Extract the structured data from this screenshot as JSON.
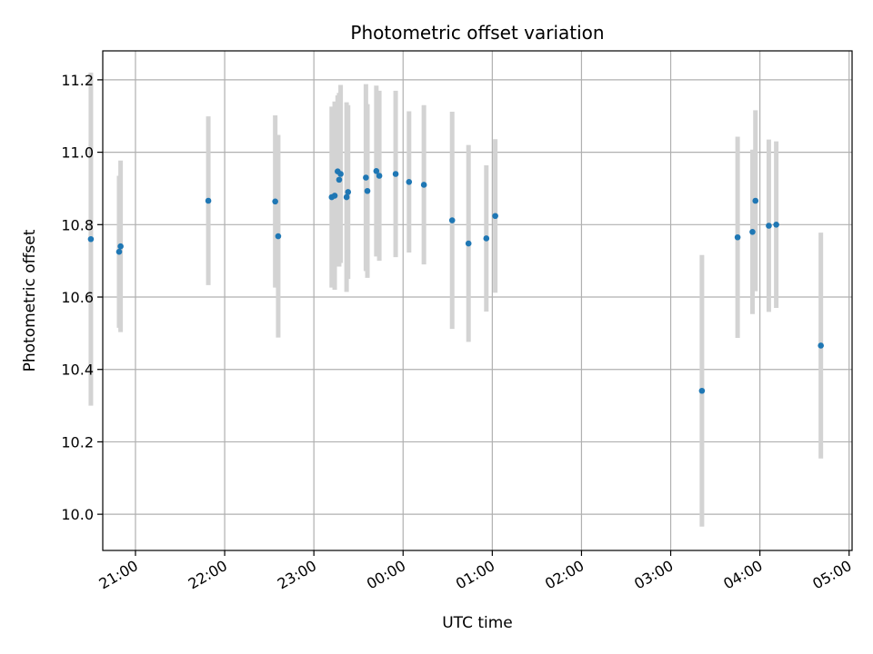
{
  "chart_data": {
    "type": "scatter",
    "title": "Photometric offset variation",
    "xlabel": "UTC time",
    "ylabel": "Photometric offset",
    "x_is_time": true,
    "xlim": [
      "20:38",
      "05:02"
    ],
    "ylim": [
      9.9,
      11.28
    ],
    "grid": true,
    "xticks": [
      "21:00",
      "22:00",
      "23:00",
      "00:00",
      "01:00",
      "02:00",
      "03:00",
      "04:00",
      "05:00"
    ],
    "yticks": [
      "10.0",
      "10.2",
      "10.4",
      "10.6",
      "10.8",
      "11.0",
      "11.2"
    ],
    "point_color": "#1f77b4",
    "errorbar_color": "#d3d3d3",
    "series": [
      {
        "x": [
          "20:30",
          "20:49",
          "20:50",
          "21:49",
          "22:34",
          "22:36",
          "23:12",
          "23:14",
          "23:16",
          "23:17",
          "23:18",
          "23:22",
          "23:23",
          "23:35",
          "23:36",
          "23:42",
          "23:44",
          "23:55",
          "00:04",
          "00:14",
          "00:33",
          "00:44",
          "00:56",
          "01:02",
          "03:21",
          "03:45",
          "03:55",
          "03:57",
          "04:06",
          "04:11",
          "04:41"
        ],
        "y": [
          10.76,
          10.725,
          10.74,
          10.866,
          10.864,
          10.768,
          10.876,
          10.88,
          10.947,
          10.924,
          10.94,
          10.876,
          10.89,
          10.93,
          10.893,
          10.948,
          10.935,
          10.94,
          10.918,
          10.91,
          10.812,
          10.748,
          10.762,
          10.824,
          10.341,
          10.765,
          10.78,
          10.866,
          10.797,
          10.8,
          10.466
        ],
        "yerr": [
          0.46,
          0.21,
          0.237,
          0.233,
          0.238,
          0.28,
          0.25,
          0.26,
          0.21,
          0.24,
          0.246,
          0.262,
          0.24,
          0.258,
          0.24,
          0.236,
          0.235,
          0.23,
          0.195,
          0.22,
          0.3,
          0.272,
          0.202,
          0.212,
          0.375,
          0.278,
          0.227,
          0.25,
          0.238,
          0.23,
          0.312
        ]
      }
    ]
  }
}
